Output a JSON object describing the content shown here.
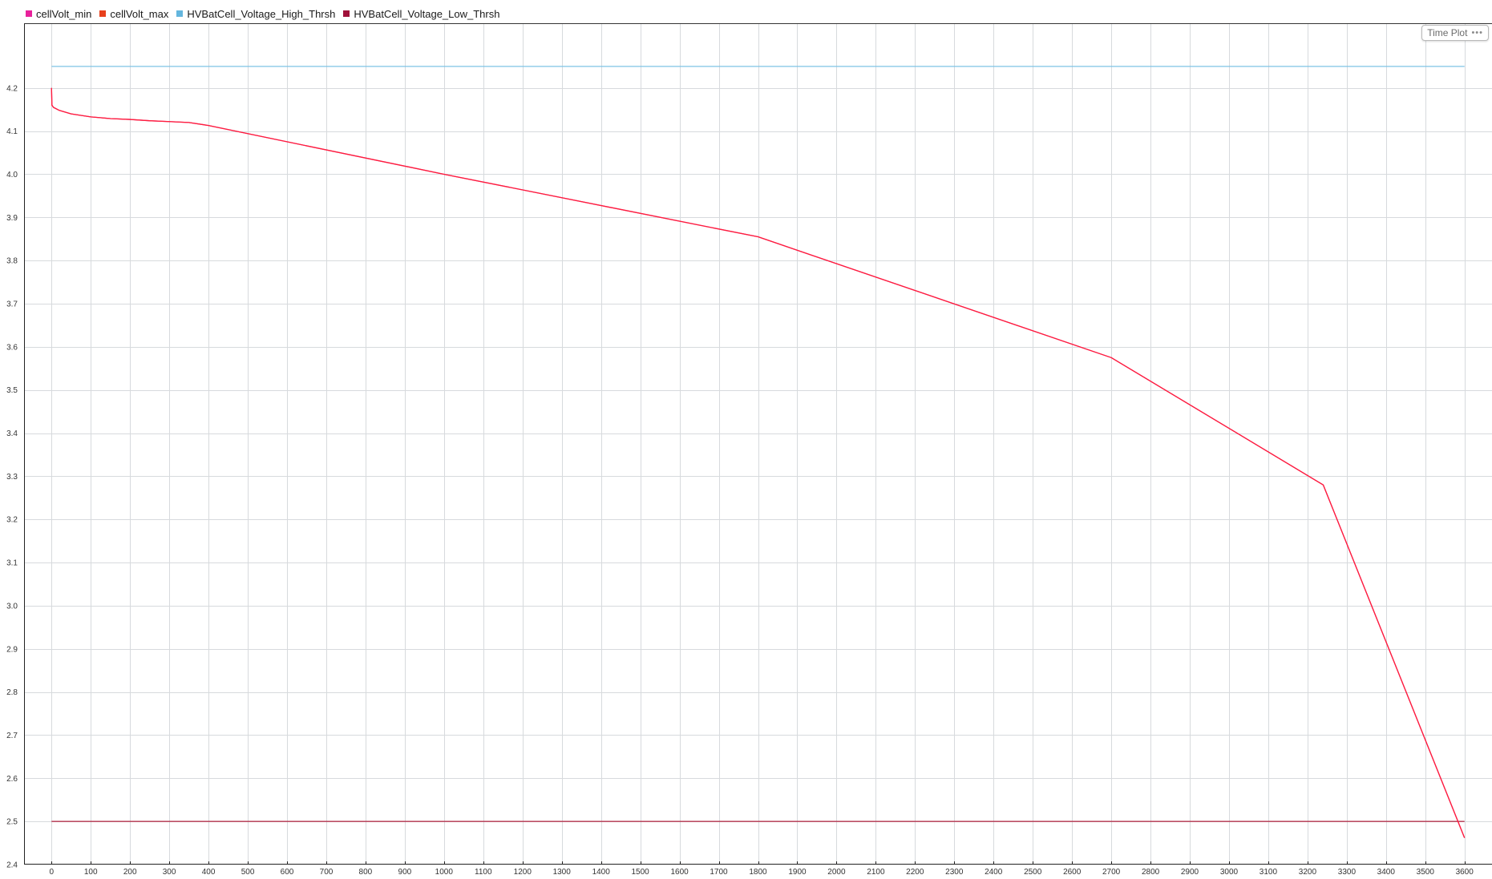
{
  "legend": [
    {
      "name": "cellVolt_min",
      "color": "#e8219b"
    },
    {
      "name": "cellVolt_max",
      "color": "#e8401c"
    },
    {
      "name": "HVBatCell_Voltage_High_Thrsh",
      "color": "#64b6de"
    },
    {
      "name": "HVBatCell_Voltage_Low_Thrsh",
      "color": "#a0113a"
    }
  ],
  "badge": {
    "label": "Time Plot",
    "dots": "•••"
  },
  "chart_data": {
    "type": "line",
    "title": "",
    "xlabel": "",
    "ylabel": "",
    "xlim": [
      -70,
      3670
    ],
    "ylim": [
      2.4,
      4.35
    ],
    "x_ticks": [
      0,
      100,
      200,
      300,
      400,
      500,
      600,
      700,
      800,
      900,
      1000,
      1100,
      1200,
      1300,
      1400,
      1500,
      1600,
      1700,
      1800,
      1900,
      2000,
      2100,
      2200,
      2300,
      2400,
      2500,
      2600,
      2700,
      2800,
      2900,
      3000,
      3100,
      3200,
      3300,
      3400,
      3500,
      3600
    ],
    "y_ticks": [
      2.4,
      2.5,
      2.6,
      2.7,
      2.8,
      2.9,
      3.0,
      3.1,
      3.2,
      3.3,
      3.4,
      3.5,
      3.6,
      3.7,
      3.8,
      3.9,
      4.0,
      4.1,
      4.2
    ],
    "y_tick_labels": [
      "2.4",
      "2.5",
      "2.6",
      "2.7",
      "2.8",
      "2.9",
      "3.0",
      "3.1",
      "3.2",
      "3.3",
      "3.4",
      "3.5",
      "3.6",
      "3.7",
      "3.8",
      "3.9",
      "4.0",
      "4.1",
      "4.2"
    ],
    "grid": true,
    "legend_position": "top-left",
    "series": [
      {
        "name": "HVBatCell_Voltage_High_Thrsh",
        "color": "#7ec3e6",
        "x": [
          0,
          3600
        ],
        "y": [
          4.25,
          4.25
        ]
      },
      {
        "name": "HVBatCell_Voltage_Low_Thrsh",
        "color": "#b0203c",
        "x": [
          0,
          3600
        ],
        "y": [
          2.5,
          2.5
        ]
      },
      {
        "name": "cellVolt_min",
        "color": "#e8219b",
        "x": [
          0,
          1,
          5,
          20,
          50,
          100,
          150,
          200,
          250,
          300,
          350,
          400,
          1000,
          1800,
          2700,
          3240,
          3600
        ],
        "y": [
          4.2,
          4.16,
          4.155,
          4.148,
          4.14,
          4.133,
          4.129,
          4.127,
          4.124,
          4.122,
          4.12,
          4.113,
          4.0,
          3.855,
          3.575,
          3.28,
          2.462
        ]
      },
      {
        "name": "cellVolt_max",
        "color": "#ff1f3a",
        "x": [
          0,
          1,
          5,
          20,
          50,
          100,
          150,
          200,
          250,
          300,
          350,
          400,
          1000,
          1800,
          2700,
          3240,
          3600
        ],
        "y": [
          4.2,
          4.16,
          4.155,
          4.148,
          4.14,
          4.133,
          4.129,
          4.127,
          4.124,
          4.122,
          4.12,
          4.113,
          4.0,
          3.855,
          3.575,
          3.28,
          2.462
        ]
      }
    ]
  }
}
